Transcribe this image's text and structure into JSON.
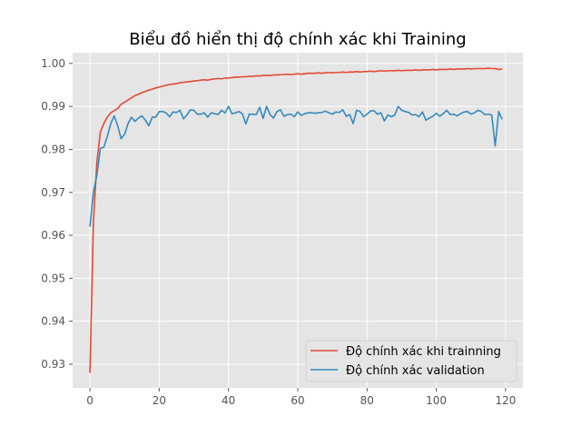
{
  "chart_data": {
    "type": "line",
    "title": "Biểu đồ hiển thị độ chính xác khi Training",
    "xlabel": "",
    "ylabel": "",
    "xlim": [
      -5,
      125
    ],
    "ylim": [
      0.9245,
      1.0025
    ],
    "xticks": [
      0,
      20,
      40,
      60,
      80,
      100,
      120
    ],
    "yticks": [
      0.93,
      0.94,
      0.95,
      0.96,
      0.97,
      0.98,
      0.99,
      1.0
    ],
    "ytick_labels": [
      "0.93",
      "0.94",
      "0.95",
      "0.96",
      "0.97",
      "0.98",
      "0.99",
      "1.00"
    ],
    "grid": true,
    "legend_position": "bottom-right",
    "series": [
      {
        "name": "Độ chính xác khi trainning",
        "color": "#e24a33",
        "x": [
          0,
          1,
          2,
          3,
          4,
          5,
          6,
          7,
          8,
          9,
          10,
          11,
          12,
          13,
          14,
          15,
          16,
          17,
          18,
          19,
          20,
          21,
          22,
          23,
          24,
          25,
          26,
          27,
          28,
          29,
          30,
          31,
          32,
          33,
          34,
          35,
          36,
          37,
          38,
          39,
          40,
          41,
          42,
          43,
          44,
          45,
          46,
          47,
          48,
          49,
          50,
          51,
          52,
          53,
          54,
          55,
          56,
          57,
          58,
          59,
          60,
          61,
          62,
          63,
          64,
          65,
          66,
          67,
          68,
          69,
          70,
          71,
          72,
          73,
          74,
          75,
          76,
          77,
          78,
          79,
          80,
          81,
          82,
          83,
          84,
          85,
          86,
          87,
          88,
          89,
          90,
          91,
          92,
          93,
          94,
          95,
          96,
          97,
          98,
          99,
          100,
          101,
          102,
          103,
          104,
          105,
          106,
          107,
          108,
          109,
          110,
          111,
          112,
          113,
          114,
          115,
          116,
          117,
          118,
          119
        ],
        "values": [
          0.928,
          0.963,
          0.977,
          0.984,
          0.986,
          0.9875,
          0.9885,
          0.989,
          0.9895,
          0.9905,
          0.991,
          0.9915,
          0.992,
          0.9925,
          0.9928,
          0.9932,
          0.9935,
          0.9938,
          0.994,
          0.9943,
          0.9945,
          0.9947,
          0.9949,
          0.9951,
          0.9952,
          0.9953,
          0.9955,
          0.9956,
          0.9957,
          0.9958,
          0.9959,
          0.996,
          0.9961,
          0.9962,
          0.9961,
          0.9963,
          0.9964,
          0.9965,
          0.9964,
          0.9966,
          0.9966,
          0.9967,
          0.9968,
          0.9968,
          0.9969,
          0.9969,
          0.997,
          0.997,
          0.9971,
          0.9971,
          0.9972,
          0.9972,
          0.9972,
          0.9973,
          0.9973,
          0.9974,
          0.9974,
          0.9975,
          0.9974,
          0.9975,
          0.9976,
          0.9975,
          0.9976,
          0.9977,
          0.9977,
          0.9977,
          0.9978,
          0.9977,
          0.9978,
          0.9979,
          0.9978,
          0.9979,
          0.9979,
          0.998,
          0.9979,
          0.998,
          0.998,
          0.9981,
          0.998,
          0.9981,
          0.9981,
          0.9982,
          0.9981,
          0.9982,
          0.9983,
          0.9982,
          0.9983,
          0.9983,
          0.9983,
          0.9984,
          0.9983,
          0.9984,
          0.9984,
          0.9984,
          0.9985,
          0.9984,
          0.9985,
          0.9985,
          0.9985,
          0.9986,
          0.9985,
          0.9986,
          0.9986,
          0.9986,
          0.9987,
          0.9986,
          0.9987,
          0.9987,
          0.9987,
          0.9988,
          0.9987,
          0.9988,
          0.9988,
          0.9988,
          0.9988,
          0.9989,
          0.9988,
          0.9988,
          0.9986,
          0.9987
        ]
      },
      {
        "name": "Độ chính xác validation",
        "color": "#348abd",
        "x": [
          0,
          1,
          2,
          3,
          4,
          5,
          6,
          7,
          8,
          9,
          10,
          11,
          12,
          13,
          14,
          15,
          16,
          17,
          18,
          19,
          20,
          21,
          22,
          23,
          24,
          25,
          26,
          27,
          28,
          29,
          30,
          31,
          32,
          33,
          34,
          35,
          36,
          37,
          38,
          39,
          40,
          41,
          42,
          43,
          44,
          45,
          46,
          47,
          48,
          49,
          50,
          51,
          52,
          53,
          54,
          55,
          56,
          57,
          58,
          59,
          60,
          61,
          62,
          63,
          64,
          65,
          66,
          67,
          68,
          69,
          70,
          71,
          72,
          73,
          74,
          75,
          76,
          77,
          78,
          79,
          80,
          81,
          82,
          83,
          84,
          85,
          86,
          87,
          88,
          89,
          90,
          91,
          92,
          93,
          94,
          95,
          96,
          97,
          98,
          99,
          100,
          101,
          102,
          103,
          104,
          105,
          106,
          107,
          108,
          109,
          110,
          111,
          112,
          113,
          114,
          115,
          116,
          117,
          118,
          119
        ],
        "values": [
          0.962,
          0.97,
          0.974,
          0.9802,
          0.9805,
          0.983,
          0.986,
          0.9878,
          0.9855,
          0.9825,
          0.9835,
          0.986,
          0.9875,
          0.9865,
          0.9873,
          0.9878,
          0.9868,
          0.9855,
          0.9875,
          0.9875,
          0.9888,
          0.9888,
          0.9885,
          0.9876,
          0.9887,
          0.9886,
          0.9891,
          0.9871,
          0.988,
          0.9892,
          0.9891,
          0.9882,
          0.9882,
          0.9885,
          0.9875,
          0.9885,
          0.9883,
          0.9881,
          0.9891,
          0.9885,
          0.99,
          0.9883,
          0.9885,
          0.9888,
          0.9883,
          0.9859,
          0.9882,
          0.9882,
          0.9881,
          0.9898,
          0.9872,
          0.99,
          0.9881,
          0.9873,
          0.9888,
          0.9892,
          0.9877,
          0.9881,
          0.9882,
          0.9876,
          0.9887,
          0.9879,
          0.9883,
          0.9885,
          0.9885,
          0.9884,
          0.9885,
          0.9886,
          0.9889,
          0.9885,
          0.9882,
          0.9887,
          0.9886,
          0.9892,
          0.9877,
          0.9881,
          0.986,
          0.9891,
          0.9888,
          0.9876,
          0.9882,
          0.9889,
          0.989,
          0.9882,
          0.9885,
          0.9866,
          0.988,
          0.9876,
          0.988,
          0.99,
          0.9891,
          0.9888,
          0.9886,
          0.988,
          0.9881,
          0.9876,
          0.9887,
          0.9868,
          0.9873,
          0.9877,
          0.9884,
          0.9877,
          0.9883,
          0.9891,
          0.9881,
          0.9882,
          0.9878,
          0.9883,
          0.9887,
          0.9888,
          0.9882,
          0.9885,
          0.9891,
          0.9888,
          0.9881,
          0.9882,
          0.988,
          0.9808,
          0.9888,
          0.987
        ]
      }
    ]
  }
}
